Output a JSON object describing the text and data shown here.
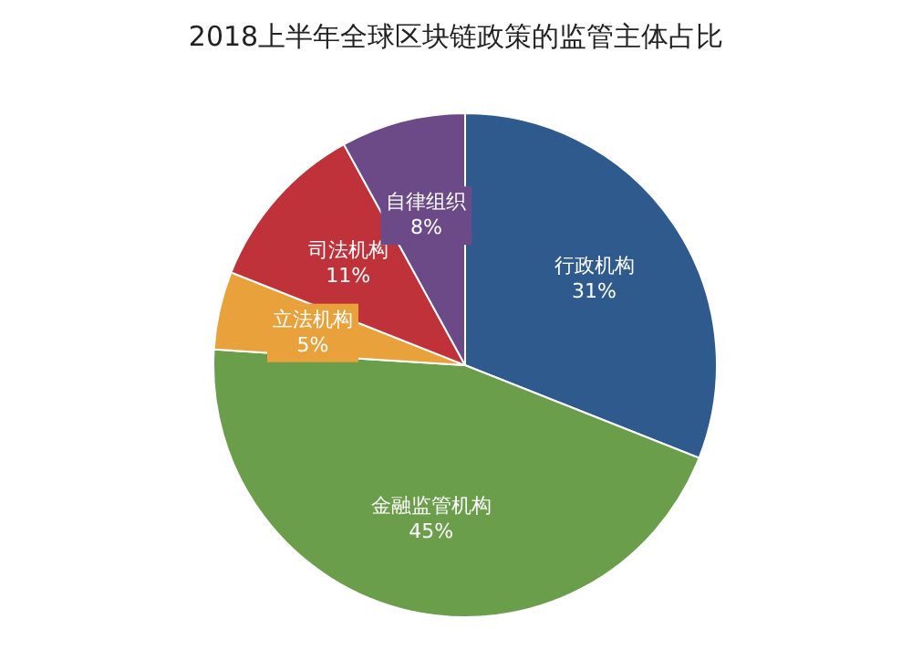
{
  "chart_data": {
    "type": "pie",
    "title": "2018上半年全球区块链政策的监管主体占比",
    "categories": [
      "行政机构",
      "金融监管机构",
      "立法机构",
      "司法机构",
      "自律组织"
    ],
    "values": [
      31,
      45,
      5,
      11,
      8
    ],
    "colors": [
      "#2f5a8e",
      "#6b9e4b",
      "#e9a23b",
      "#c0323a",
      "#6c4a87"
    ],
    "value_labels": [
      "31%",
      "45%",
      "5%",
      "11%",
      "8%"
    ]
  }
}
